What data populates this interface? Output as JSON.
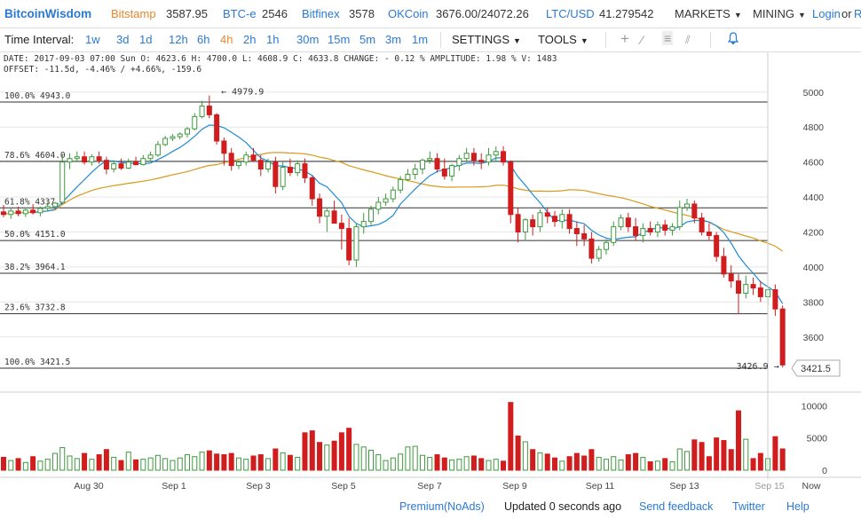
{
  "topbar": {
    "brand": "BitcoinWisdom",
    "exchanges": [
      {
        "name": "Bitstamp",
        "price": "3587.95",
        "highlight": true
      },
      {
        "name": "BTC-e",
        "price": "2546",
        "highlight": false
      },
      {
        "name": "Bitfinex",
        "price": "3578",
        "highlight": false
      },
      {
        "name": "OKCoin",
        "price": "3676.00/24072.26",
        "highlight": false
      },
      {
        "name": "LTC/USD",
        "price": "41.279542",
        "highlight": false
      }
    ],
    "markets_label": "MARKETS",
    "mining_label": "MINING",
    "login_label": "Login",
    "or_label": "or",
    "register_label": "R"
  },
  "toolbar": {
    "time_interval_label": "Time Interval:",
    "intervals": [
      "1w",
      "3d",
      "1d",
      "12h",
      "6h",
      "4h",
      "2h",
      "1h",
      "30m",
      "15m",
      "5m",
      "3m",
      "1m"
    ],
    "selected_interval": "4h",
    "settings_label": "SETTINGS",
    "tools_label": "TOOLS",
    "tool_icons": [
      "crosshair-icon",
      "line-draw-icon",
      "horizontal-lines-icon",
      "fan-lines-icon",
      "alert-bell-icon"
    ]
  },
  "info": {
    "line1": "DATE: 2017-09-03 07:00 Sun   O: 4623.6   H: 4700.0   L: 4608.9   C: 4633.8   CHANGE: - 0.12 %   AMPLITUDE: 1.98 %   V: 1483",
    "line2": "OFFSET: -11.5d, -4.46% / +4.66%, -159.6"
  },
  "chart_data": {
    "type": "candlestick",
    "y_axis": {
      "range": [
        3320,
        5080
      ],
      "ticks": [
        3600,
        3800,
        4000,
        4200,
        4400,
        4600,
        4800,
        5000
      ]
    },
    "volume_axis": {
      "range": [
        0,
        11000
      ],
      "ticks": [
        0,
        5000,
        10000
      ]
    },
    "x_ticks": [
      "Aug 30",
      "Sep 1",
      "Sep 3",
      "Sep 5",
      "Sep 7",
      "Sep 9",
      "Sep 11",
      "Sep 13",
      "Sep 15"
    ],
    "now_label": "Now",
    "fib_levels": [
      {
        "label": "100.0% 4943.0",
        "price": 4943.0
      },
      {
        "label": "78.6% 4604.0",
        "price": 4604.0
      },
      {
        "label": "61.8% 4337.9",
        "price": 4337.9
      },
      {
        "label": "50.0% 4151.0",
        "price": 4151.0
      },
      {
        "label": "38.2% 3964.1",
        "price": 3964.1
      },
      {
        "label": "23.6% 3732.8",
        "price": 3732.8
      },
      {
        "label": "100.0% 3421.5",
        "price": 3421.5
      }
    ],
    "annotations": {
      "high_label": "← 4979.9",
      "high_price": 4979.9,
      "low_label": "3426.9 →",
      "low_price": 3426.9
    },
    "current_price_label": "3421.5",
    "current_price": 3421.5,
    "colors": {
      "up": "#3e9a3e",
      "down": "#d11d1d",
      "ma_fast": "#1e8bd6",
      "ma_slow": "#d89a1c",
      "fib_line": "#333333",
      "grid": "#e6e6e6"
    },
    "candles": [
      [
        4315,
        4355,
        4285,
        4300,
        2000
      ],
      [
        4300,
        4335,
        4275,
        4320,
        1500
      ],
      [
        4320,
        4345,
        4290,
        4305,
        1800
      ],
      [
        4305,
        4340,
        4285,
        4325,
        1200
      ],
      [
        4325,
        4360,
        4300,
        4310,
        2100
      ],
      [
        4310,
        4345,
        4290,
        4335,
        1400
      ],
      [
        4335,
        4370,
        4320,
        4345,
        1700
      ],
      [
        4345,
        4372,
        4340,
        4365,
        2600
      ],
      [
        4370,
        4640,
        4360,
        4600,
        3500
      ],
      [
        4600,
        4650,
        4560,
        4620,
        2200
      ],
      [
        4620,
        4660,
        4600,
        4630,
        1800
      ],
      [
        4630,
        4660,
        4585,
        4600,
        2600
      ],
      [
        4600,
        4645,
        4580,
        4630,
        1700
      ],
      [
        4630,
        4660,
        4590,
        4610,
        2400
      ],
      [
        4610,
        4630,
        4530,
        4560,
        3200
      ],
      [
        4560,
        4610,
        4540,
        4590,
        2000
      ],
      [
        4590,
        4620,
        4555,
        4565,
        1500
      ],
      [
        4565,
        4620,
        4560,
        4600,
        2800
      ],
      [
        4600,
        4630,
        4580,
        4585,
        1600
      ],
      [
        4585,
        4640,
        4580,
        4620,
        1700
      ],
      [
        4620,
        4660,
        4600,
        4640,
        1900
      ],
      [
        4640,
        4720,
        4630,
        4700,
        2300
      ],
      [
        4700,
        4750,
        4690,
        4735,
        1800
      ],
      [
        4735,
        4760,
        4720,
        4745,
        1500
      ],
      [
        4745,
        4770,
        4730,
        4760,
        1900
      ],
      [
        4760,
        4800,
        4740,
        4790,
        2400
      ],
      [
        4790,
        4880,
        4780,
        4860,
        2100
      ],
      [
        4860,
        4950,
        4850,
        4920,
        2800
      ],
      [
        4920,
        4980,
        4850,
        4870,
        3000
      ],
      [
        4870,
        4880,
        4700,
        4720,
        2500
      ],
      [
        4720,
        4740,
        4580,
        4650,
        2400
      ],
      [
        4650,
        4680,
        4550,
        4580,
        2600
      ],
      [
        4580,
        4610,
        4560,
        4600,
        1900
      ],
      [
        4600,
        4660,
        4580,
        4640,
        1700
      ],
      [
        4640,
        4680,
        4600,
        4610,
        2200
      ],
      [
        4610,
        4640,
        4520,
        4560,
        2400
      ],
      [
        4560,
        4620,
        4540,
        4600,
        1800
      ],
      [
        4600,
        4630,
        4420,
        4460,
        3300
      ],
      [
        4460,
        4600,
        4440,
        4570,
        2700
      ],
      [
        4570,
        4620,
        4520,
        4540,
        2300
      ],
      [
        4540,
        4610,
        4520,
        4590,
        2000
      ],
      [
        4590,
        4620,
        4480,
        4510,
        5800
      ],
      [
        4510,
        4520,
        4350,
        4390,
        6100
      ],
      [
        4390,
        4420,
        4250,
        4290,
        4300
      ],
      [
        4290,
        4340,
        4200,
        4320,
        3900
      ],
      [
        4320,
        4380,
        4250,
        4250,
        4500
      ],
      [
        4250,
        4300,
        4100,
        4220,
        5800
      ],
      [
        4220,
        4280,
        4010,
        4040,
        6500
      ],
      [
        4040,
        4250,
        4000,
        4230,
        4000
      ],
      [
        4230,
        4310,
        4190,
        4260,
        3600
      ],
      [
        4260,
        4350,
        4240,
        4330,
        3100
      ],
      [
        4330,
        4400,
        4300,
        4370,
        2400
      ],
      [
        4370,
        4420,
        4350,
        4390,
        1500
      ],
      [
        4390,
        4460,
        4370,
        4440,
        1900
      ],
      [
        4440,
        4520,
        4420,
        4500,
        2500
      ],
      [
        4500,
        4560,
        4490,
        4530,
        3600
      ],
      [
        4530,
        4590,
        4500,
        4560,
        3700
      ],
      [
        4560,
        4620,
        4530,
        4610,
        2300
      ],
      [
        4610,
        4660,
        4590,
        4620,
        2000
      ],
      [
        4620,
        4650,
        4540,
        4560,
        2400
      ],
      [
        4560,
        4620,
        4500,
        4520,
        1900
      ],
      [
        4520,
        4590,
        4490,
        4580,
        1600
      ],
      [
        4580,
        4640,
        4550,
        4620,
        1700
      ],
      [
        4620,
        4680,
        4600,
        4650,
        2100
      ],
      [
        4650,
        4680,
        4580,
        4610,
        2200
      ],
      [
        4610,
        4650,
        4560,
        4600,
        1800
      ],
      [
        4600,
        4680,
        4580,
        4640,
        1500
      ],
      [
        4640,
        4690,
        4600,
        4660,
        1700
      ],
      [
        4660,
        4690,
        4580,
        4600,
        1400
      ],
      [
        4600,
        4610,
        4250,
        4300,
        10500
      ],
      [
        4300,
        4340,
        4140,
        4200,
        5300
      ],
      [
        4200,
        4280,
        4150,
        4270,
        4400
      ],
      [
        4270,
        4300,
        4180,
        4230,
        3200
      ],
      [
        4230,
        4330,
        4200,
        4310,
        2700
      ],
      [
        4310,
        4340,
        4250,
        4290,
        2500
      ],
      [
        4290,
        4320,
        4230,
        4260,
        1900
      ],
      [
        4260,
        4330,
        4220,
        4300,
        1400
      ],
      [
        4300,
        4330,
        4190,
        4220,
        2100
      ],
      [
        4220,
        4260,
        4120,
        4190,
        2600
      ],
      [
        4190,
        4240,
        4120,
        4160,
        2200
      ],
      [
        4160,
        4200,
        4020,
        4050,
        3200
      ],
      [
        4050,
        4120,
        4030,
        4100,
        2000
      ],
      [
        4100,
        4160,
        4070,
        4140,
        1700
      ],
      [
        4140,
        4260,
        4120,
        4230,
        2100
      ],
      [
        4230,
        4300,
        4210,
        4280,
        1600
      ],
      [
        4280,
        4310,
        4200,
        4230,
        2400
      ],
      [
        4230,
        4280,
        4150,
        4180,
        2600
      ],
      [
        4180,
        4250,
        4140,
        4220,
        2000
      ],
      [
        4220,
        4260,
        4180,
        4200,
        1300
      ],
      [
        4200,
        4260,
        4170,
        4240,
        1400
      ],
      [
        4240,
        4270,
        4180,
        4210,
        1800
      ],
      [
        4210,
        4250,
        4180,
        4230,
        1300
      ],
      [
        4230,
        4380,
        4210,
        4340,
        3300
      ],
      [
        4340,
        4390,
        4320,
        4360,
        2900
      ],
      [
        4360,
        4380,
        4250,
        4280,
        4700
      ],
      [
        4280,
        4310,
        4180,
        4200,
        4300
      ],
      [
        4200,
        4250,
        4150,
        4180,
        2100
      ],
      [
        4180,
        4200,
        4030,
        4060,
        5000
      ],
      [
        4060,
        4110,
        3940,
        3960,
        4600
      ],
      [
        3960,
        4010,
        3880,
        3920,
        3200
      ],
      [
        3920,
        3960,
        3730,
        3850,
        9200
      ],
      [
        3850,
        3950,
        3820,
        3900,
        4800
      ],
      [
        3900,
        3940,
        3840,
        3880,
        1800
      ],
      [
        3880,
        3920,
        3800,
        3830,
        2600
      ],
      [
        3830,
        3890,
        3780,
        3870,
        1800
      ],
      [
        3870,
        3900,
        3720,
        3760,
        5200
      ],
      [
        3760,
        3780,
        3426,
        3440,
        3300
      ]
    ]
  },
  "statusbar": {
    "premium_label": "Premium(NoAds)",
    "updated_label": "Updated 0 seconds ago",
    "feedback_label": "Send feedback",
    "twitter_label": "Twitter",
    "help_label": "Help"
  }
}
